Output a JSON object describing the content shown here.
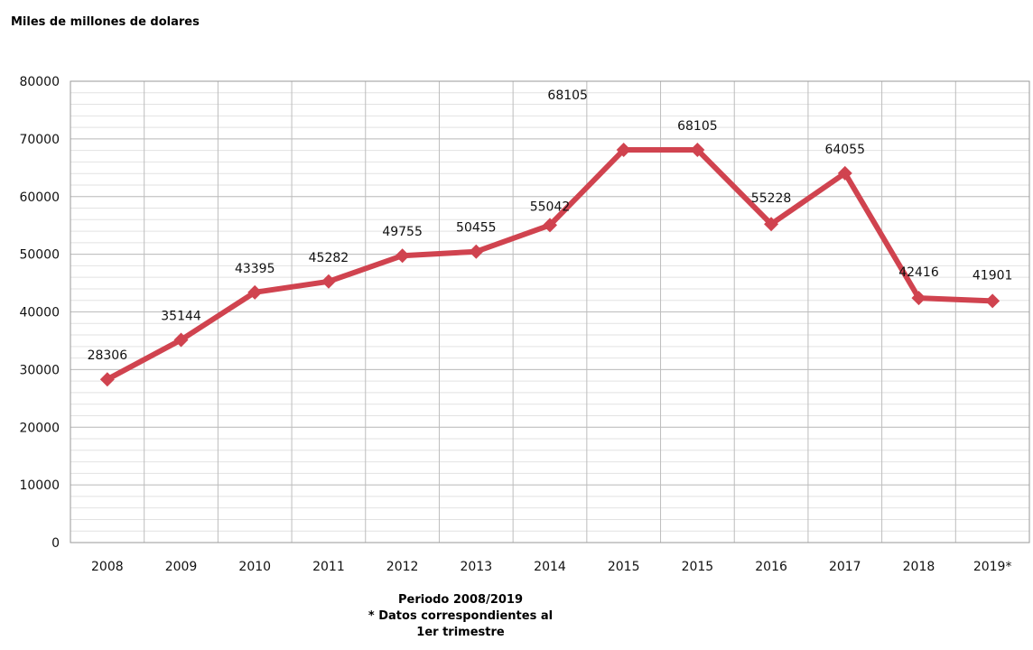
{
  "chart_data": {
    "type": "line",
    "unit_label": "Miles de millones de dolares",
    "categories": [
      "2008",
      "2009",
      "2010",
      "2011",
      "2012",
      "2013",
      "2014",
      "2015",
      "2015",
      "2016",
      "2017",
      "2018",
      "2019*"
    ],
    "series": [
      {
        "values": [
          28306,
          35144,
          43395,
          45282,
          49755,
          50455,
          55042,
          68105,
          68105,
          55228,
          64055,
          42416,
          41901
        ]
      }
    ],
    "data_labels": [
      "28306",
      "35144",
      "43395",
      "45282",
      "49755",
      "50455",
      "55042",
      "68105",
      "68105",
      "55228",
      "64055",
      "42416",
      "41901"
    ],
    "y_ticks": [
      "0",
      "10000",
      "20000",
      "30000",
      "40000",
      "50000",
      "60000",
      "70000",
      "80000"
    ],
    "ylim": [
      0,
      80000
    ],
    "grid": true,
    "line_color": "#d0434f",
    "footnote": [
      "Periodo 2008/2019",
      "* Datos correspondientes al",
      "1er trimestre"
    ]
  }
}
